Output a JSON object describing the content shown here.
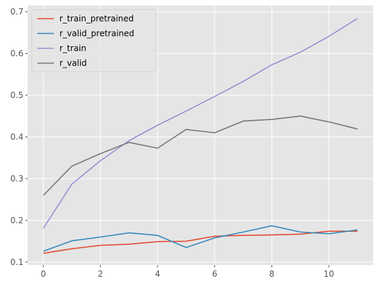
{
  "chart_data": {
    "type": "line",
    "title": "",
    "xlabel": "",
    "ylabel": "",
    "xlim": [
      -0.55,
      11.55
    ],
    "ylim": [
      0.093,
      0.715
    ],
    "grid": true,
    "legend_position": "top-left",
    "x_ticks": [
      {
        "value": 0,
        "label": "0"
      },
      {
        "value": 2,
        "label": "2"
      },
      {
        "value": 4,
        "label": "4"
      },
      {
        "value": 6,
        "label": "6"
      },
      {
        "value": 8,
        "label": "8"
      },
      {
        "value": 10,
        "label": "10"
      }
    ],
    "y_ticks": [
      {
        "value": 0.1,
        "label": "0.1"
      },
      {
        "value": 0.2,
        "label": "0.2"
      },
      {
        "value": 0.3,
        "label": "0.3"
      },
      {
        "value": 0.4,
        "label": "0.4"
      },
      {
        "value": 0.5,
        "label": "0.5"
      },
      {
        "value": 0.6,
        "label": "0.6"
      },
      {
        "value": 0.7,
        "label": "0.7"
      }
    ],
    "x": [
      0,
      1,
      2,
      3,
      4,
      5,
      6,
      7,
      8,
      9,
      10,
      11
    ],
    "series": [
      {
        "name": "r_train_pretrained",
        "color": "#E24A33",
        "values": [
          0.121,
          0.132,
          0.14,
          0.143,
          0.149,
          0.15,
          0.162,
          0.164,
          0.165,
          0.167,
          0.174,
          0.174
        ]
      },
      {
        "name": "r_valid_pretrained",
        "color": "#348ABD",
        "values": [
          0.126,
          0.151,
          0.16,
          0.17,
          0.164,
          0.135,
          0.158,
          0.172,
          0.187,
          0.172,
          0.168,
          0.177
        ]
      },
      {
        "name": "r_train",
        "color": "#988ED5",
        "values": [
          0.181,
          0.287,
          0.343,
          0.391,
          0.428,
          0.462,
          0.497,
          0.533,
          0.573,
          0.603,
          0.641,
          0.684
        ]
      },
      {
        "name": "r_valid",
        "color": "#777777",
        "values": [
          0.26,
          0.33,
          0.36,
          0.387,
          0.373,
          0.418,
          0.41,
          0.438,
          0.442,
          0.45,
          0.436,
          0.419
        ]
      }
    ]
  }
}
